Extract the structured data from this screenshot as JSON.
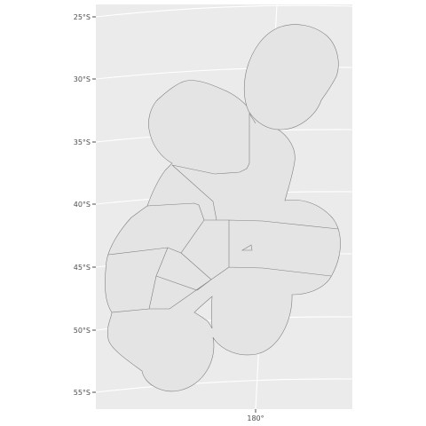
{
  "plot": {
    "panel_background": "#ebebeb",
    "grid_color": "#ffffff",
    "region_fill": "#e4e4e4",
    "region_stroke": "#7f7f7f"
  },
  "chart_data": {
    "type": "map",
    "title": "",
    "xlabel": "",
    "ylabel": "",
    "latitude_ticks": [
      "25°S",
      "30°S",
      "35°S",
      "40°S",
      "45°S",
      "50°S",
      "55°S"
    ],
    "longitude_ticks": [
      "180°"
    ],
    "grid": true,
    "legend": "none"
  }
}
